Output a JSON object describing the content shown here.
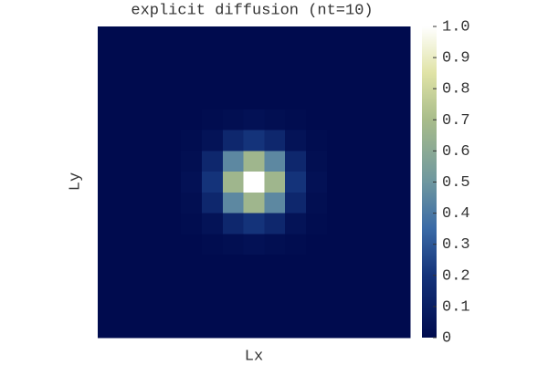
{
  "chart_data": {
    "type": "heatmap",
    "title": "explicit diffusion (nt=10)",
    "xlabel": "Lx",
    "ylabel": "Ly",
    "z": [
      [
        0,
        0,
        0,
        0,
        0,
        0,
        0,
        0,
        0,
        0,
        0,
        0,
        0,
        0,
        0
      ],
      [
        0,
        0,
        0,
        0,
        0,
        0,
        0,
        0,
        0,
        0,
        0,
        0,
        0,
        0,
        0
      ],
      [
        0,
        0,
        0,
        0,
        0,
        0,
        0,
        0,
        0,
        0,
        0,
        0,
        0,
        0,
        0
      ],
      [
        0,
        0,
        0,
        0,
        0,
        0,
        0,
        0,
        0,
        0,
        0,
        0,
        0,
        0,
        0
      ],
      [
        0,
        0,
        0,
        0,
        0,
        0.01,
        0.02,
        0.03,
        0.02,
        0.01,
        0,
        0,
        0,
        0,
        0
      ],
      [
        0,
        0,
        0,
        0,
        0.01,
        0.04,
        0.14,
        0.2,
        0.14,
        0.04,
        0.01,
        0,
        0,
        0,
        0
      ],
      [
        0,
        0,
        0,
        0,
        0.02,
        0.14,
        0.45,
        0.67,
        0.45,
        0.14,
        0.02,
        0,
        0,
        0,
        0
      ],
      [
        0,
        0,
        0,
        0,
        0.03,
        0.2,
        0.67,
        1.0,
        0.67,
        0.2,
        0.03,
        0,
        0,
        0,
        0
      ],
      [
        0,
        0,
        0,
        0,
        0.02,
        0.14,
        0.45,
        0.67,
        0.45,
        0.14,
        0.02,
        0,
        0,
        0,
        0
      ],
      [
        0,
        0,
        0,
        0,
        0.01,
        0.04,
        0.14,
        0.2,
        0.14,
        0.04,
        0.01,
        0,
        0,
        0,
        0
      ],
      [
        0,
        0,
        0,
        0,
        0,
        0.01,
        0.02,
        0.03,
        0.02,
        0.01,
        0,
        0,
        0,
        0,
        0
      ],
      [
        0,
        0,
        0,
        0,
        0,
        0,
        0,
        0,
        0,
        0,
        0,
        0,
        0,
        0,
        0
      ],
      [
        0,
        0,
        0,
        0,
        0,
        0,
        0,
        0,
        0,
        0,
        0,
        0,
        0,
        0,
        0
      ],
      [
        0,
        0,
        0,
        0,
        0,
        0,
        0,
        0,
        0,
        0,
        0,
        0,
        0,
        0,
        0
      ],
      [
        0,
        0,
        0,
        0,
        0,
        0,
        0,
        0,
        0,
        0,
        0,
        0,
        0,
        0,
        0
      ]
    ],
    "colorscale": [
      [
        0,
        "#000b4e"
      ],
      [
        0.2,
        "#14337a"
      ],
      [
        0.35,
        "#3a6aa6"
      ],
      [
        0.5,
        "#6e979f"
      ],
      [
        0.7,
        "#a8bc8a"
      ],
      [
        0.85,
        "#e0e3a6"
      ],
      [
        1,
        "#ffffff"
      ]
    ],
    "clim": [
      0,
      1
    ],
    "cticks": [
      0,
      0.1,
      0.2,
      0.3,
      0.4,
      0.5,
      0.6,
      0.7,
      0.8,
      0.9,
      {
        "value": 1,
        "label": "1.0"
      }
    ]
  }
}
